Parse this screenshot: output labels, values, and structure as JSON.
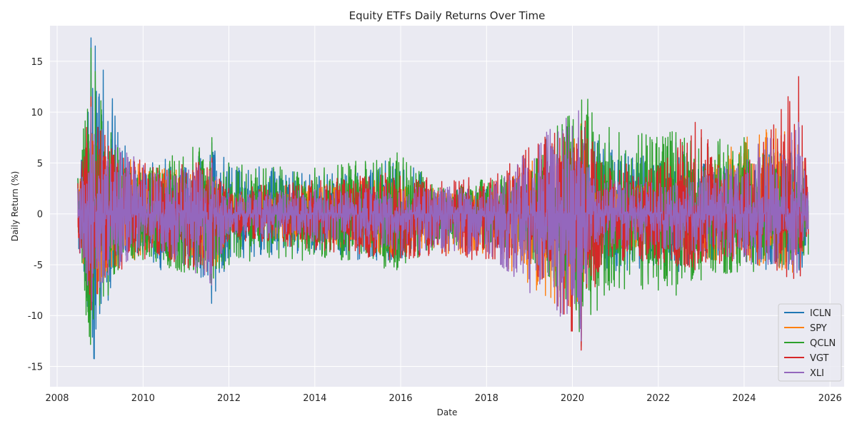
{
  "chart_data": {
    "type": "line",
    "title": "Equity ETFs Daily Returns Over Time",
    "xlabel": "Date",
    "ylabel": "Daily Return (%)",
    "x_range": [
      "2008-06-25",
      "2025-07-01"
    ],
    "xlim": [
      "2007-11-01",
      "2026-05-01"
    ],
    "ylim": [
      -17,
      18.5
    ],
    "x_ticks": [
      "2008",
      "2010",
      "2012",
      "2014",
      "2016",
      "2018",
      "2020",
      "2022",
      "2024",
      "2026"
    ],
    "y_ticks": [
      -15,
      -10,
      -5,
      0,
      5,
      10,
      15
    ],
    "grid": true,
    "legend_position": "lower-right",
    "series": [
      {
        "name": "ICLN",
        "color": "#1f77b4",
        "envelope_x": [
          "2008-06-25",
          "2008-09-15",
          "2008-10-15",
          "2008-11-20",
          "2009-03-10",
          "2009-06-01",
          "2010-01-01",
          "2010-06-01",
          "2011-01-01",
          "2011-08-08",
          "2012-01-01",
          "2013-01-01",
          "2014-01-01",
          "2015-01-01",
          "2015-08-24",
          "2016-06-01",
          "2017-01-01",
          "2018-02-05",
          "2019-01-01",
          "2020-02-20",
          "2020-03-16",
          "2020-04-15",
          "2020-11-10",
          "2021-02-01",
          "2022-01-01",
          "2022-06-01",
          "2023-01-01",
          "2024-01-01",
          "2025-04-09",
          "2025-07-01"
        ],
        "envelope_hi": [
          3.5,
          9.6,
          17.3,
          16.5,
          14.4,
          8.0,
          4.0,
          6.0,
          4.5,
          7.0,
          5.0,
          4.5,
          4.0,
          4.0,
          5.2,
          4.5,
          2.5,
          2.6,
          3.5,
          4.5,
          12.0,
          8.5,
          7.0,
          6.0,
          5.5,
          7.0,
          5.0,
          4.5,
          8.0,
          4.0
        ],
        "envelope_lo": [
          -3.0,
          -9.1,
          -15.3,
          -14.5,
          -8.5,
          -5.0,
          -4.0,
          -5.5,
          -4.0,
          -8.8,
          -4.5,
          -4.0,
          -3.8,
          -4.5,
          -5.0,
          -4.0,
          -2.5,
          -3.5,
          -3.5,
          -6.0,
          -12.5,
          -6.0,
          -5.5,
          -6.0,
          -5.0,
          -6.0,
          -4.5,
          -4.5,
          -7.3,
          -3.0
        ]
      },
      {
        "name": "SPY",
        "color": "#ff7f0e",
        "envelope_x": [
          "2008-06-25",
          "2008-10-15",
          "2009-03-10",
          "2010-05-06",
          "2011-08-08",
          "2012-01-01",
          "2015-08-24",
          "2018-02-05",
          "2020-03-16",
          "2020-06-01",
          "2022-06-01",
          "2025-04-09",
          "2025-07-01"
        ],
        "envelope_hi": [
          2.5,
          11.0,
          7.0,
          4.5,
          4.6,
          2.0,
          3.5,
          2.0,
          9.0,
          3.0,
          3.5,
          10.5,
          2.0
        ],
        "envelope_lo": [
          -2.5,
          -9.8,
          -5.5,
          -3.8,
          -6.5,
          -2.0,
          -4.0,
          -4.2,
          -11.0,
          -3.0,
          -4.0,
          -6.0,
          -1.5
        ]
      },
      {
        "name": "QCLN",
        "color": "#2ca02c",
        "envelope_x": [
          "2008-06-25",
          "2008-10-15",
          "2008-11-20",
          "2009-03-10",
          "2009-06-01",
          "2010-01-01",
          "2011-08-08",
          "2012-01-01",
          "2014-01-01",
          "2015-12-01",
          "2017-01-01",
          "2019-01-01",
          "2020-03-16",
          "2020-11-10",
          "2021-02-01",
          "2022-01-01",
          "2022-06-01",
          "2023-01-01",
          "2024-01-01",
          "2025-04-09",
          "2025-07-01"
        ],
        "envelope_hi": [
          3.5,
          16.3,
          14.0,
          10.5,
          6.5,
          4.5,
          7.5,
          5.0,
          4.5,
          6.0,
          2.5,
          4.5,
          14.6,
          8.5,
          8.0,
          9.0,
          8.0,
          7.5,
          7.5,
          5.5,
          3.0
        ],
        "envelope_lo": [
          -4.0,
          -14.3,
          -12.5,
          -8.0,
          -5.5,
          -4.5,
          -7.0,
          -5.0,
          -4.5,
          -5.5,
          -3.0,
          -4.0,
          -13.0,
          -7.5,
          -7.5,
          -7.5,
          -8.0,
          -6.5,
          -6.0,
          -5.0,
          -4.0
        ]
      },
      {
        "name": "VGT",
        "color": "#d62728",
        "envelope_x": [
          "2008-06-25",
          "2008-10-15",
          "2009-03-10",
          "2010-05-06",
          "2011-08-08",
          "2012-01-01",
          "2015-08-24",
          "2018-02-05",
          "2018-12-26",
          "2020-03-16",
          "2020-09-01",
          "2022-01-01",
          "2022-11-10",
          "2024-01-01",
          "2025-04-09",
          "2025-07-01"
        ],
        "envelope_hi": [
          3.0,
          11.5,
          7.0,
          4.5,
          5.5,
          2.5,
          4.0,
          3.5,
          6.5,
          11.0,
          5.0,
          5.0,
          9.0,
          4.5,
          13.5,
          3.0
        ],
        "envelope_lo": [
          -3.0,
          -11.0,
          -6.0,
          -4.0,
          -6.5,
          -2.5,
          -4.5,
          -4.5,
          -5.0,
          -13.4,
          -5.0,
          -5.0,
          -5.5,
          -4.5,
          -7.3,
          -2.0
        ]
      },
      {
        "name": "XLI",
        "color": "#9467bd",
        "envelope_x": [
          "2008-06-25",
          "2008-10-15",
          "2009-03-10",
          "2010-05-06",
          "2011-08-08",
          "2012-01-01",
          "2015-08-24",
          "2018-02-05",
          "2020-03-16",
          "2020-06-01",
          "2022-06-01",
          "2025-04-09",
          "2025-07-01"
        ],
        "envelope_hi": [
          2.5,
          10.5,
          7.5,
          4.0,
          5.0,
          2.0,
          3.0,
          2.5,
          12.6,
          3.5,
          3.0,
          9.0,
          2.0
        ],
        "envelope_lo": [
          -2.5,
          -10.0,
          -6.0,
          -3.5,
          -7.0,
          -2.0,
          -3.5,
          -4.5,
          -12.5,
          -3.5,
          -3.5,
          -6.0,
          -1.5
        ]
      }
    ]
  }
}
